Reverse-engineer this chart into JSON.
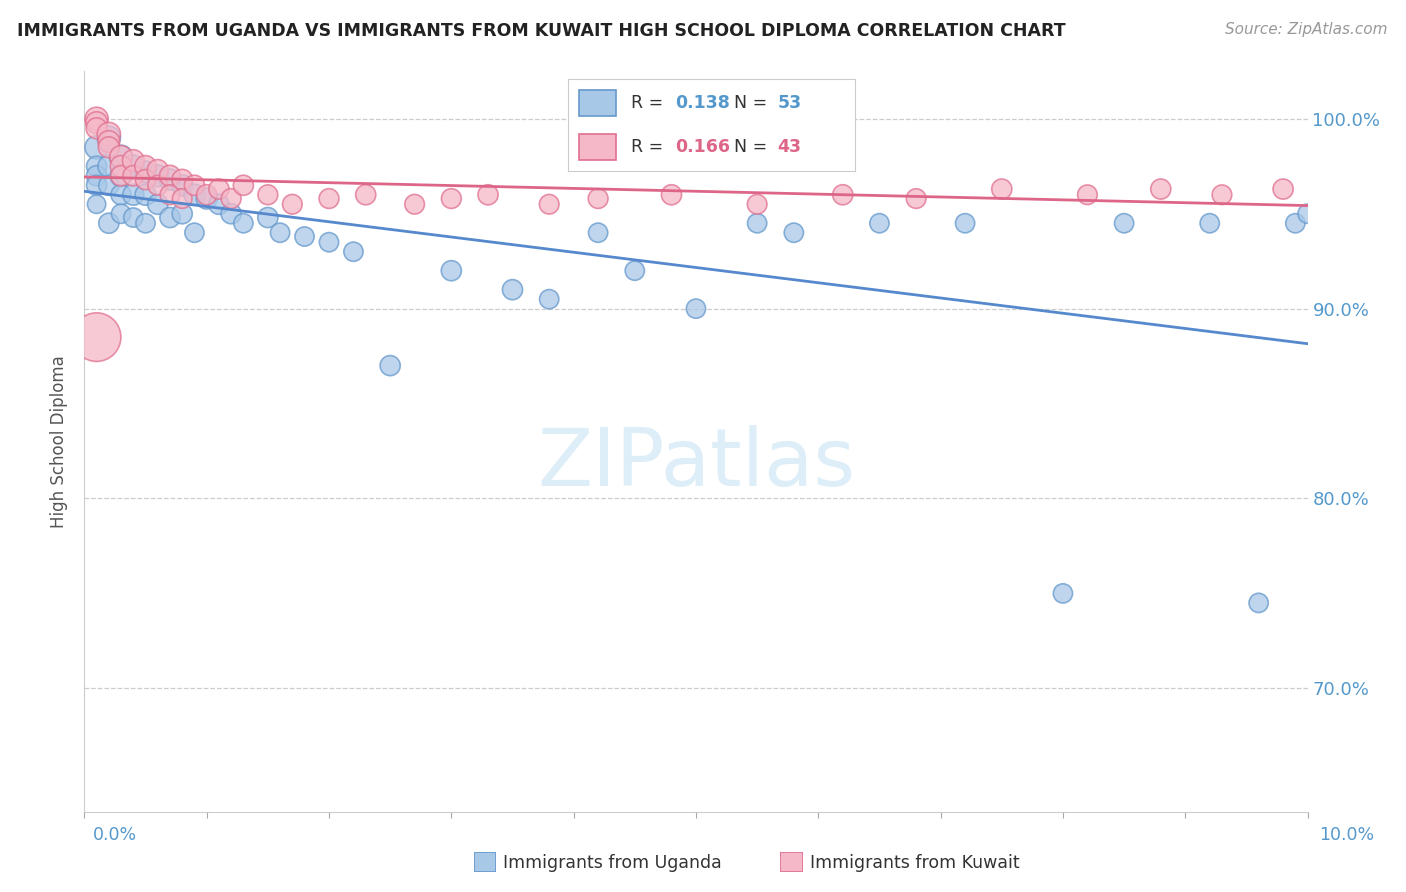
{
  "title": "IMMIGRANTS FROM UGANDA VS IMMIGRANTS FROM KUWAIT HIGH SCHOOL DIPLOMA CORRELATION CHART",
  "source": "Source: ZipAtlas.com",
  "ylabel": "High School Diploma",
  "ytick_values": [
    0.7,
    0.8,
    0.9,
    1.0
  ],
  "xlim": [
    0.0,
    0.1
  ],
  "ylim": [
    0.635,
    1.025
  ],
  "legend_r1": "0.138",
  "legend_n1": "53",
  "legend_r2": "0.166",
  "legend_n2": "43",
  "color_uganda_face": "#a8c8e8",
  "color_uganda_edge": "#6699cc",
  "color_kuwait_face": "#f5b8c8",
  "color_kuwait_edge": "#e07090",
  "color_uganda_line": "#5588cc",
  "color_kuwait_line": "#dd6688",
  "color_right_axis": "#5599cc",
  "watermark_color": "#ddeef8",
  "uganda_x": [
    0.001,
    0.001,
    0.001,
    0.001,
    0.001,
    0.002,
    0.002,
    0.002,
    0.002,
    0.003,
    0.003,
    0.003,
    0.003,
    0.004,
    0.004,
    0.004,
    0.005,
    0.005,
    0.005,
    0.006,
    0.006,
    0.007,
    0.007,
    0.008,
    0.008,
    0.009,
    0.009,
    0.01,
    0.011,
    0.012,
    0.013,
    0.015,
    0.016,
    0.018,
    0.02,
    0.022,
    0.025,
    0.03,
    0.035,
    0.038,
    0.042,
    0.045,
    0.05,
    0.055,
    0.058,
    0.065,
    0.072,
    0.08,
    0.085,
    0.092,
    0.096,
    0.099,
    0.1
  ],
  "uganda_y": [
    0.985,
    0.975,
    0.97,
    0.965,
    0.955,
    0.99,
    0.975,
    0.965,
    0.945,
    0.98,
    0.97,
    0.96,
    0.95,
    0.975,
    0.96,
    0.948,
    0.972,
    0.96,
    0.945,
    0.97,
    0.955,
    0.968,
    0.948,
    0.965,
    0.95,
    0.96,
    0.94,
    0.958,
    0.955,
    0.95,
    0.945,
    0.948,
    0.94,
    0.938,
    0.935,
    0.93,
    0.87,
    0.92,
    0.91,
    0.905,
    0.94,
    0.92,
    0.9,
    0.945,
    0.94,
    0.945,
    0.945,
    0.75,
    0.945,
    0.945,
    0.745,
    0.945,
    0.95
  ],
  "uganda_sizes": [
    80,
    60,
    60,
    60,
    50,
    80,
    70,
    60,
    60,
    80,
    70,
    60,
    55,
    75,
    65,
    55,
    70,
    65,
    55,
    70,
    60,
    65,
    60,
    65,
    60,
    65,
    55,
    65,
    60,
    60,
    55,
    60,
    55,
    55,
    55,
    55,
    60,
    60,
    60,
    55,
    55,
    55,
    55,
    55,
    55,
    55,
    55,
    55,
    55,
    55,
    55,
    55,
    55
  ],
  "kuwait_x": [
    0.001,
    0.001,
    0.001,
    0.002,
    0.002,
    0.002,
    0.003,
    0.003,
    0.003,
    0.004,
    0.004,
    0.005,
    0.005,
    0.006,
    0.006,
    0.007,
    0.007,
    0.008,
    0.008,
    0.009,
    0.01,
    0.011,
    0.012,
    0.013,
    0.015,
    0.017,
    0.02,
    0.023,
    0.027,
    0.03,
    0.033,
    0.038,
    0.042,
    0.048,
    0.055,
    0.062,
    0.068,
    0.075,
    0.082,
    0.088,
    0.093,
    0.098,
    0.001
  ],
  "kuwait_y": [
    1.0,
    0.998,
    0.995,
    0.992,
    0.988,
    0.985,
    0.98,
    0.975,
    0.97,
    0.978,
    0.97,
    0.975,
    0.968,
    0.973,
    0.965,
    0.97,
    0.96,
    0.968,
    0.958,
    0.965,
    0.96,
    0.963,
    0.958,
    0.965,
    0.96,
    0.955,
    0.958,
    0.96,
    0.955,
    0.958,
    0.96,
    0.955,
    0.958,
    0.96,
    0.955,
    0.96,
    0.958,
    0.963,
    0.96,
    0.963,
    0.96,
    0.963,
    0.885
  ],
  "kuwait_sizes": [
    80,
    70,
    65,
    80,
    70,
    65,
    75,
    68,
    62,
    70,
    62,
    68,
    60,
    65,
    58,
    65,
    58,
    62,
    57,
    60,
    60,
    60,
    58,
    60,
    58,
    57,
    58,
    60,
    57,
    58,
    60,
    57,
    58,
    60,
    57,
    60,
    57,
    60,
    57,
    60,
    57,
    60,
    350
  ]
}
